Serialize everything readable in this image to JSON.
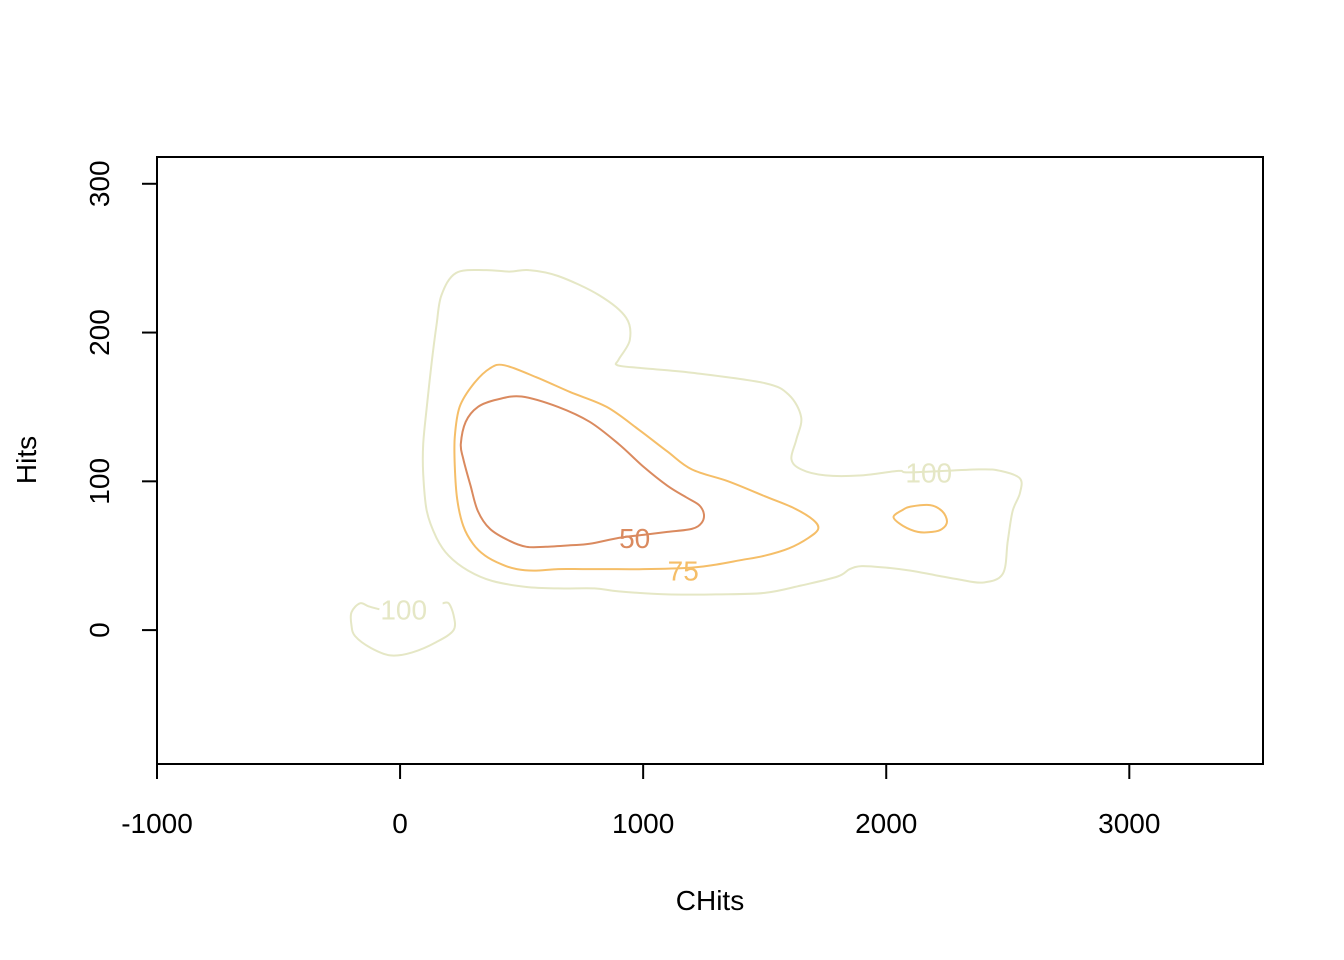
{
  "chart_data": {
    "type": "contour",
    "title": "",
    "xlabel": "CHits",
    "ylabel": "Hits",
    "xlim": [
      -1000,
      3550
    ],
    "ylim": [
      -90,
      318
    ],
    "x_ticks": [
      -1000,
      0,
      1000,
      2000,
      3000
    ],
    "x_tick_labels": [
      "-1000",
      "0",
      "1000",
      "2000",
      "3000"
    ],
    "y_ticks": [
      0,
      100,
      200,
      300
    ],
    "y_tick_labels": [
      "0",
      "100",
      "200",
      "300"
    ],
    "grid": false,
    "legend": "none",
    "levels": [
      {
        "level": "50",
        "color": "#DA8A5F",
        "label_text": "50",
        "label_at": [
          965,
          62
        ],
        "paths": [
          [
            [
              500,
              157
            ],
            [
              650,
              150
            ],
            [
              780,
              140
            ],
            [
              900,
              125
            ],
            [
              1000,
              110
            ],
            [
              1100,
              97
            ],
            [
              1180,
              89
            ],
            [
              1230,
              84
            ],
            [
              1250,
              78
            ],
            [
              1240,
              72
            ],
            [
              1200,
              68
            ],
            [
              1100,
              66
            ],
            [
              1000,
              64
            ],
            [
              900,
              62
            ],
            [
              780,
              58
            ],
            [
              700,
              57
            ],
            [
              600,
              56
            ],
            [
              520,
              56
            ],
            [
              450,
              60
            ],
            [
              370,
              68
            ],
            [
              320,
              80
            ],
            [
              290,
              97
            ],
            [
              260,
              115
            ],
            [
              250,
              125
            ],
            [
              270,
              140
            ],
            [
              320,
              150
            ],
            [
              400,
              155
            ],
            [
              500,
              157
            ]
          ]
        ]
      },
      {
        "level": "75",
        "color": "#F5BE68",
        "label_text": "75",
        "label_at": [
          1165,
          40
        ],
        "paths": [
          [
            [
              430,
              178
            ],
            [
              560,
              170
            ],
            [
              700,
              160
            ],
            [
              850,
              150
            ],
            [
              980,
              135
            ],
            [
              1100,
              120
            ],
            [
              1200,
              108
            ],
            [
              1350,
              100
            ],
            [
              1500,
              90
            ],
            [
              1620,
              82
            ],
            [
              1700,
              74
            ],
            [
              1720,
              68
            ],
            [
              1680,
              62
            ],
            [
              1600,
              55
            ],
            [
              1500,
              50
            ],
            [
              1400,
              47
            ],
            [
              1300,
              44
            ],
            [
              1200,
              42
            ],
            [
              1000,
              41
            ],
            [
              850,
              41
            ],
            [
              750,
              41
            ],
            [
              650,
              41
            ],
            [
              550,
              40
            ],
            [
              480,
              41
            ],
            [
              420,
              44
            ],
            [
              350,
              50
            ],
            [
              300,
              58
            ],
            [
              260,
              70
            ],
            [
              235,
              88
            ],
            [
              225,
              110
            ],
            [
              225,
              130
            ],
            [
              245,
              150
            ],
            [
              300,
              165
            ],
            [
              370,
              176
            ],
            [
              430,
              178
            ]
          ],
          [
            [
              2100,
              83
            ],
            [
              2180,
              84
            ],
            [
              2230,
              80
            ],
            [
              2250,
              73
            ],
            [
              2230,
              68
            ],
            [
              2190,
              66
            ],
            [
              2130,
              66
            ],
            [
              2070,
              70
            ],
            [
              2030,
              76
            ],
            [
              2070,
              81
            ],
            [
              2100,
              83
            ]
          ]
        ]
      },
      {
        "level": "100",
        "color": "#E5E7C5",
        "label_text": "100",
        "label_at": [
          [
            2175,
            106
          ],
          [
            15,
            14
          ]
        ],
        "paths": [
          [
            [
              530,
              242
            ],
            [
              650,
              238
            ],
            [
              820,
              225
            ],
            [
              930,
              210
            ],
            [
              945,
              195
            ],
            [
              900,
              182
            ],
            [
              895,
              178
            ],
            [
              1000,
              176
            ],
            [
              1200,
              173
            ],
            [
              1500,
              166
            ],
            [
              1600,
              158
            ],
            [
              1650,
              143
            ],
            [
              1630,
              128
            ],
            [
              1610,
              115
            ],
            [
              1650,
              108
            ],
            [
              1750,
              104
            ],
            [
              1900,
              104
            ],
            [
              2050,
              107
            ],
            [
              2100,
              106
            ],
            [
              2380,
              108
            ],
            [
              2470,
              107
            ],
            [
              2550,
              102
            ],
            [
              2550,
              92
            ],
            [
              2520,
              80
            ],
            [
              2500,
              60
            ],
            [
              2480,
              38
            ],
            [
              2400,
              32
            ],
            [
              2300,
              34
            ],
            [
              2200,
              37
            ],
            [
              2100,
              40
            ],
            [
              2000,
              42
            ],
            [
              1900,
              43
            ],
            [
              1850,
              41
            ],
            [
              1800,
              36
            ],
            [
              1650,
              30
            ],
            [
              1500,
              25
            ],
            [
              1300,
              24
            ],
            [
              1100,
              24
            ],
            [
              900,
              26
            ],
            [
              800,
              28
            ],
            [
              650,
              28
            ],
            [
              520,
              29
            ],
            [
              380,
              33
            ],
            [
              280,
              40
            ],
            [
              200,
              50
            ],
            [
              150,
              62
            ],
            [
              110,
              80
            ],
            [
              95,
              105
            ],
            [
              95,
              125
            ],
            [
              110,
              150
            ],
            [
              130,
              180
            ],
            [
              150,
              205
            ],
            [
              170,
              225
            ],
            [
              230,
              240
            ],
            [
              350,
              242
            ],
            [
              450,
              241
            ],
            [
              530,
              242
            ]
          ],
          [
            [
              -85,
              14
            ],
            [
              -130,
              16
            ],
            [
              -165,
              18
            ],
            [
              -200,
              12
            ],
            [
              -200,
              3
            ],
            [
              -185,
              -4
            ],
            [
              -120,
              -12
            ],
            [
              -40,
              -17
            ],
            [
              50,
              -15
            ],
            [
              150,
              -8
            ],
            [
              220,
              0
            ],
            [
              220,
              10
            ],
            [
              200,
              18
            ],
            [
              175,
              18
            ]
          ]
        ]
      }
    ]
  }
}
